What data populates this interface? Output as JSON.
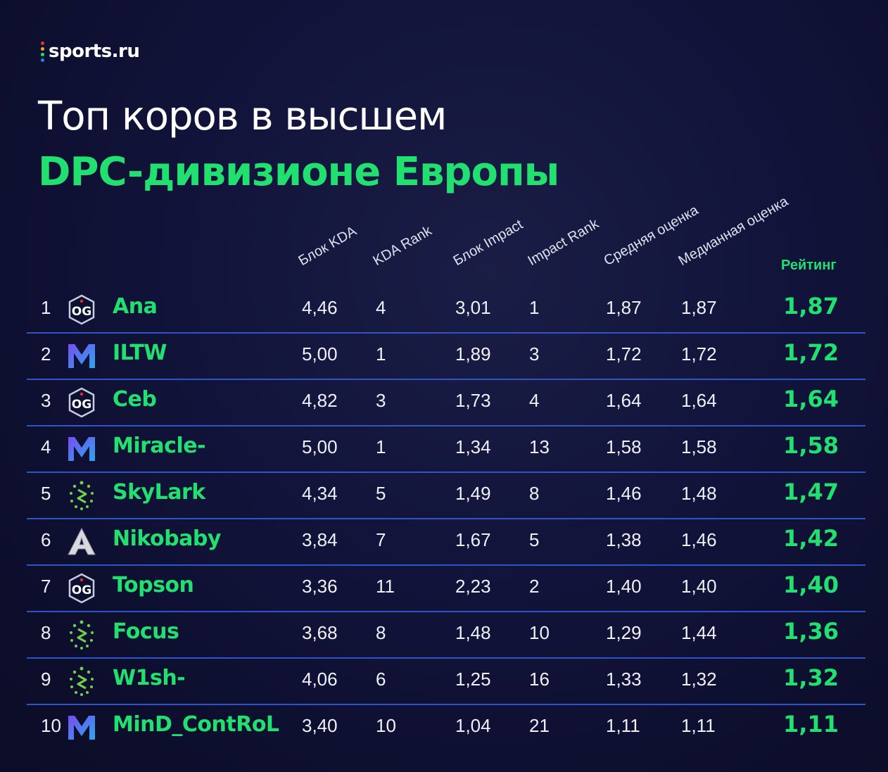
{
  "brand": {
    "name": "sports.ru",
    "dot_colors": [
      "#e7323b",
      "#f5a623",
      "#22e070",
      "#2e7bf6"
    ]
  },
  "title": {
    "line1": "Топ коров в высшем",
    "line2": "DPC-дивизионе Европы"
  },
  "colors": {
    "accent": "#22e070",
    "divider": "#2e54c8",
    "background": "#11133a"
  },
  "chart_data": {
    "type": "table",
    "columns": [
      "Блок KDA",
      "KDA Rank",
      "Блок Impact",
      "Impact Rank",
      "Средняя оценка",
      "Медианная оценка",
      "Рейтинг"
    ],
    "rows": [
      {
        "rank": "1",
        "team_icon": "og-logo",
        "player": "Ana",
        "kda": "4,46",
        "kda_rank": "4",
        "impact": "3,01",
        "impact_rank": "1",
        "avg": "1,87",
        "median": "1,87",
        "rating": "1,87"
      },
      {
        "rank": "2",
        "team_icon": "nigma-logo",
        "player": "ILTW",
        "kda": "5,00",
        "kda_rank": "1",
        "impact": "1,89",
        "impact_rank": "3",
        "avg": "1,72",
        "median": "1,72",
        "rating": "1,72"
      },
      {
        "rank": "3",
        "team_icon": "og-logo",
        "player": "Ceb",
        "kda": "4,82",
        "kda_rank": "3",
        "impact": "1,73",
        "impact_rank": "4",
        "avg": "1,64",
        "median": "1,64",
        "rating": "1,64"
      },
      {
        "rank": "4",
        "team_icon": "nigma-logo",
        "player": "Miracle-",
        "kda": "5,00",
        "kda_rank": "1",
        "impact": "1,34",
        "impact_rank": "13",
        "avg": "1,58",
        "median": "1,58",
        "rating": "1,58"
      },
      {
        "rank": "5",
        "team_icon": "liquid-logo",
        "player": "SkyLark",
        "kda": "4,34",
        "kda_rank": "5",
        "impact": "1,49",
        "impact_rank": "8",
        "avg": "1,46",
        "median": "1,48",
        "rating": "1,47"
      },
      {
        "rank": "6",
        "team_icon": "alliance-logo",
        "player": "Nikobaby",
        "kda": "3,84",
        "kda_rank": "7",
        "impact": "1,67",
        "impact_rank": "5",
        "avg": "1,38",
        "median": "1,46",
        "rating": "1,42"
      },
      {
        "rank": "7",
        "team_icon": "og-logo",
        "player": "Topson",
        "kda": "3,36",
        "kda_rank": "11",
        "impact": "2,23",
        "impact_rank": "2",
        "avg": "1,40",
        "median": "1,40",
        "rating": "1,40"
      },
      {
        "rank": "8",
        "team_icon": "liquid-logo",
        "player": "Focus",
        "kda": "3,68",
        "kda_rank": "8",
        "impact": "1,48",
        "impact_rank": "10",
        "avg": "1,29",
        "median": "1,44",
        "rating": "1,36"
      },
      {
        "rank": "9",
        "team_icon": "liquid-logo",
        "player": "W1sh-",
        "kda": "4,06",
        "kda_rank": "6",
        "impact": "1,25",
        "impact_rank": "16",
        "avg": "1,33",
        "median": "1,32",
        "rating": "1,32"
      },
      {
        "rank": "10",
        "team_icon": "nigma-logo",
        "player": "MinD_ContRoL",
        "kda": "3,40",
        "kda_rank": "10",
        "impact": "1,04",
        "impact_rank": "21",
        "avg": "1,11",
        "median": "1,11",
        "rating": "1,11"
      }
    ]
  }
}
